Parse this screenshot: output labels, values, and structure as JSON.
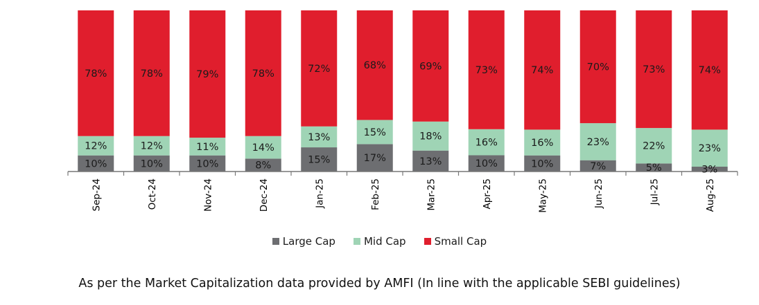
{
  "chart_data": {
    "type": "bar",
    "stacked": true,
    "percent": true,
    "categories": [
      "Sep-24",
      "Oct-24",
      "Nov-24",
      "Dec-24",
      "Jan-25",
      "Feb-25",
      "Mar-25",
      "Apr-25",
      "May-25",
      "Jun-25",
      "Jul-25",
      "Aug-25"
    ],
    "series": [
      {
        "name": "Large Cap",
        "color": "#6d6e71",
        "values": [
          10,
          10,
          10,
          8,
          15,
          17,
          13,
          10,
          10,
          7,
          5,
          3
        ]
      },
      {
        "name": "Mid Cap",
        "color": "#9fd4b5",
        "values": [
          12,
          12,
          11,
          14,
          13,
          15,
          18,
          16,
          16,
          23,
          22,
          23
        ]
      },
      {
        "name": "Small Cap",
        "color": "#e01e2d",
        "values": [
          78,
          78,
          79,
          78,
          72,
          68,
          69,
          73,
          74,
          70,
          73,
          74
        ]
      }
    ],
    "ylim": [
      0,
      100
    ],
    "legend_position": "bottom",
    "grid": false
  },
  "footnote": "As per the Market Capitalization data provided by AMFI (In line with the applicable SEBI guidelines)"
}
